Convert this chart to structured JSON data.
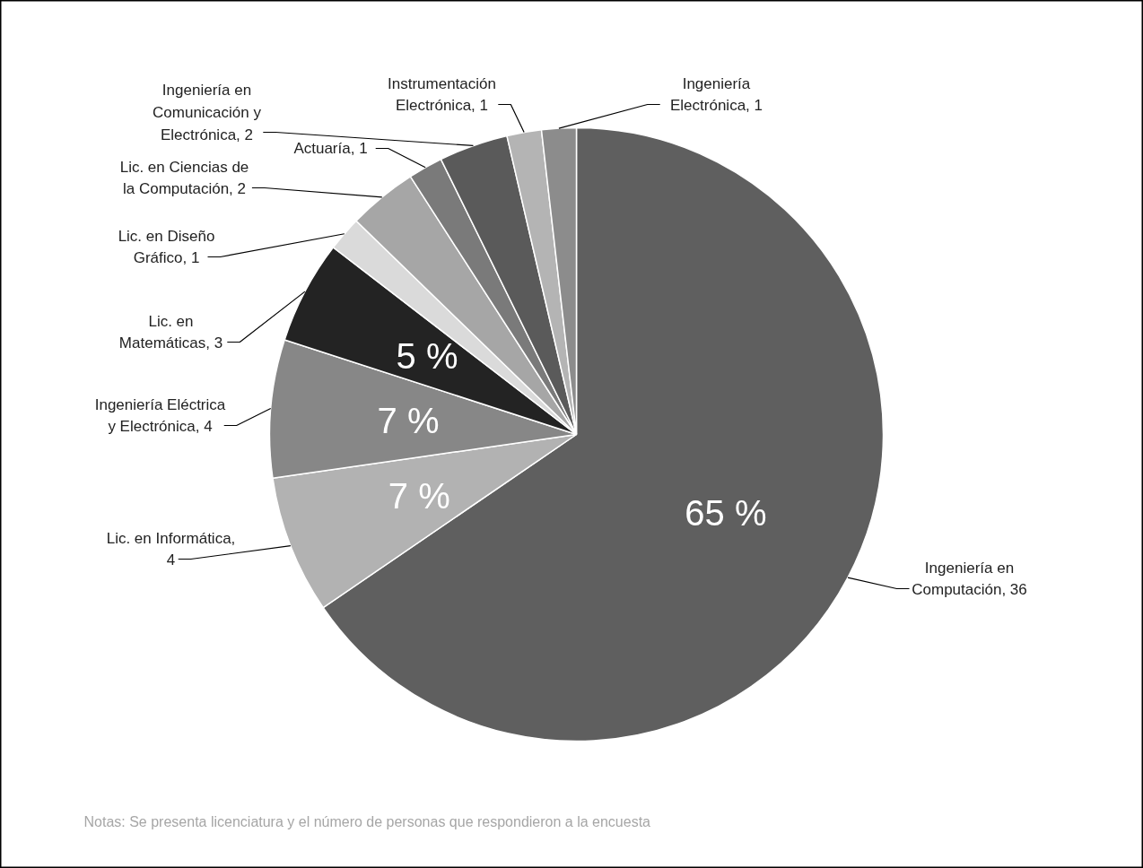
{
  "chart_data": {
    "type": "pie",
    "categories": [
      "Ingeniería en Computación, 36",
      "Lic. en Informática, 4",
      "Ingeniería Eléctrica y Electrónica, 4",
      "Lic. en Matemáticas, 3",
      "Lic. en Diseño Gráfico, 1",
      "Lic. en Ciencias de la Computación, 2",
      "Actuaría, 1",
      "Ingeniería en Comunicación y Electrónica, 2",
      "Instrumentación Electrónica, 1",
      "Ingeniería Electrónica, 1"
    ],
    "values": [
      65.45,
      7.27,
      7.27,
      5.45,
      1.82,
      3.64,
      1.82,
      3.64,
      1.82,
      1.82
    ],
    "colors": [
      "#5f5f5f",
      "#b2b2b2",
      "#878787",
      "#232323",
      "#dadada",
      "#a6a6a6",
      "#7a7a7a",
      "#5a5a5a",
      "#b4b4b4",
      "#8c8c8c"
    ],
    "value_labels": [
      "65 %",
      "7 %",
      "7 %",
      "5 %",
      null,
      null,
      null,
      null,
      null,
      null
    ],
    "annotations": [
      "Notas: Se presenta licenciatura y el número de personas que respondieron a la encuesta"
    ]
  }
}
